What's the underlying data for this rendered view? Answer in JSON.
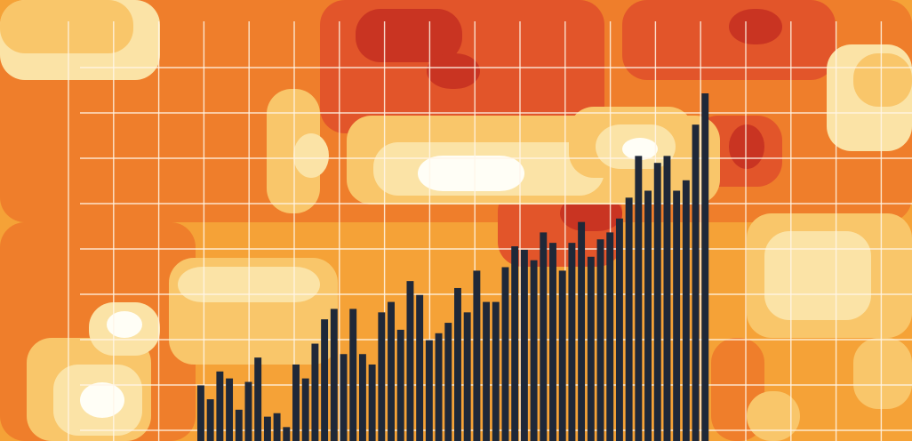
{
  "palette": {
    "pale": "#fbe3a6",
    "light": "#f9c66a",
    "mid": "#f5a237",
    "orange": "#ef7e2b",
    "deep": "#e2552a",
    "dark": "#c93422",
    "white": "#fffef6",
    "bar": "#1f2838",
    "grid": "#fff6e8"
  },
  "chart_data": {
    "type": "bar",
    "title": "",
    "xlabel": "",
    "ylabel": "",
    "grid": true,
    "legend": "none",
    "ylim": [
      0,
      100
    ],
    "series": [
      {
        "values": [
          16,
          12,
          20,
          18,
          9,
          17,
          24,
          7,
          8,
          4,
          22,
          18,
          28,
          35,
          38,
          25,
          38,
          25,
          22,
          37,
          40,
          32,
          46,
          42,
          29,
          31,
          34,
          44,
          37,
          49,
          40,
          40,
          50,
          56,
          55,
          52,
          60,
          57,
          49,
          57,
          63,
          53,
          58,
          60,
          64,
          70,
          82,
          72,
          80,
          82,
          72,
          75,
          91,
          100
        ]
      }
    ]
  }
}
